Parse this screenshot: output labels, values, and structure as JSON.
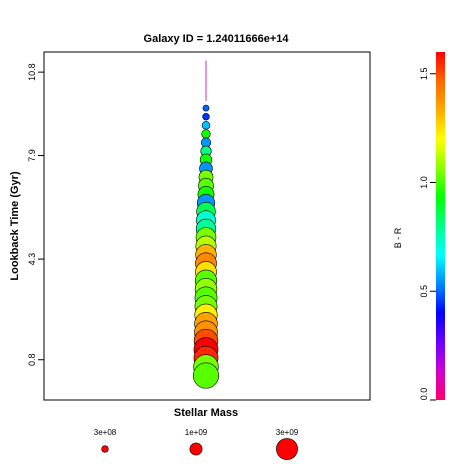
{
  "chart_data": {
    "type": "scatter",
    "title": "Galaxy ID =  1.24011666e+14",
    "xlabel": "Stellar Mass",
    "ylabel": "Lookback Time (Gyr)",
    "y_ticks": [
      0.8,
      4.3,
      7.9,
      10.8
    ],
    "y_tick_labels": [
      "0.8",
      "4.3",
      "7.9",
      "10.8"
    ],
    "ylim": [
      -0.6,
      11.5
    ],
    "x_ticks": [],
    "grid": false,
    "colorbar": {
      "label": "B - R",
      "ticks": [
        0.0,
        0.5,
        1.0,
        1.5
      ],
      "tick_labels": [
        "0.0",
        "0.5",
        "1.0",
        "1.5"
      ],
      "range": [
        0.0,
        1.6
      ],
      "gradient": [
        "#ff0066",
        "#d000d0",
        "#6a00ff",
        "#0000ff",
        "#0088ff",
        "#00ffff",
        "#00ff88",
        "#00ff00",
        "#88ff00",
        "#ffff00",
        "#ffaa00",
        "#ff6600",
        "#ff0000"
      ]
    },
    "size_legend": {
      "labels": [
        "3e+08",
        "1e+09",
        "3e+09"
      ],
      "masses": [
        300000000.0,
        1000000000.0,
        3000000000.0
      ],
      "color": "#ff0000"
    },
    "trail": {
      "from_y": 9.8,
      "to_y": 11.2,
      "color": "#e070d0"
    },
    "points": [
      {
        "y": 0.25,
        "mass": 2100000000.0,
        "br": 1.02
      },
      {
        "y": 0.55,
        "mass": 2000000000.0,
        "br": 1.05
      },
      {
        "y": 0.85,
        "mass": 1900000000.0,
        "br": 1.55
      },
      {
        "y": 1.15,
        "mass": 1900000000.0,
        "br": 1.6
      },
      {
        "y": 1.45,
        "mass": 1850000000.0,
        "br": 1.5
      },
      {
        "y": 1.75,
        "mass": 1750000000.0,
        "br": 1.38
      },
      {
        "y": 2.05,
        "mass": 1700000000.0,
        "br": 1.35
      },
      {
        "y": 2.35,
        "mass": 1650000000.0,
        "br": 1.22
      },
      {
        "y": 2.65,
        "mass": 1600000000.0,
        "br": 1.05
      },
      {
        "y": 2.95,
        "mass": 1600000000.0,
        "br": 1.02
      },
      {
        "y": 3.25,
        "mass": 1550000000.0,
        "br": 1.08
      },
      {
        "y": 3.55,
        "mass": 1500000000.0,
        "br": 1.02
      },
      {
        "y": 3.85,
        "mass": 1450000000.0,
        "br": 1.25
      },
      {
        "y": 4.15,
        "mass": 1450000000.0,
        "br": 1.4
      },
      {
        "y": 4.45,
        "mass": 1400000000.0,
        "br": 1.32
      },
      {
        "y": 4.75,
        "mass": 1350000000.0,
        "br": 1.12
      },
      {
        "y": 5.05,
        "mass": 1300000000.0,
        "br": 1.05
      },
      {
        "y": 5.35,
        "mass": 1250000000.0,
        "br": 0.78
      },
      {
        "y": 5.65,
        "mass": 1200000000.0,
        "br": 0.72
      },
      {
        "y": 5.95,
        "mass": 1150000000.0,
        "br": 0.85
      },
      {
        "y": 6.25,
        "mass": 1000000000.0,
        "br": 0.55
      },
      {
        "y": 6.55,
        "mass": 850000000.0,
        "br": 0.95
      },
      {
        "y": 6.85,
        "mass": 750000000.0,
        "br": 1.02
      },
      {
        "y": 7.15,
        "mass": 650000000.0,
        "br": 1.05
      },
      {
        "y": 7.45,
        "mass": 550000000.0,
        "br": 0.55
      },
      {
        "y": 7.75,
        "mass": 450000000.0,
        "br": 0.95
      },
      {
        "y": 8.05,
        "mass": 360000000.0,
        "br": 0.8
      },
      {
        "y": 8.35,
        "mass": 300000000.0,
        "br": 0.55
      },
      {
        "y": 8.65,
        "mass": 240000000.0,
        "br": 0.95
      },
      {
        "y": 8.95,
        "mass": 200000000.0,
        "br": 0.6
      },
      {
        "y": 9.25,
        "mass": 150000000.0,
        "br": 0.45
      },
      {
        "y": 9.55,
        "mass": 120000000.0,
        "br": 0.5
      }
    ]
  }
}
